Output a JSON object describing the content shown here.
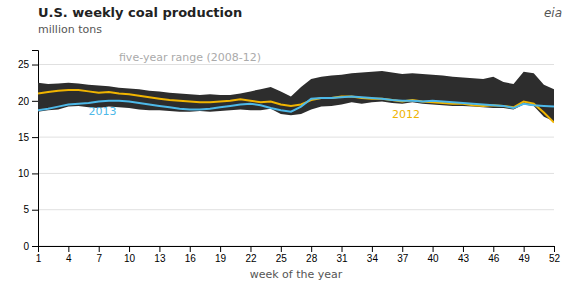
{
  "chart_data": {
    "type": "line",
    "title": "U.S. weekly coal production",
    "subtitle": "million tons",
    "xlabel": "week of the year",
    "x": [
      1,
      2,
      3,
      4,
      5,
      6,
      7,
      8,
      9,
      10,
      11,
      12,
      13,
      14,
      15,
      16,
      17,
      18,
      19,
      20,
      21,
      22,
      23,
      24,
      25,
      26,
      27,
      28,
      29,
      30,
      31,
      32,
      33,
      34,
      35,
      36,
      37,
      38,
      39,
      40,
      41,
      42,
      43,
      44,
      45,
      46,
      47,
      48,
      49,
      50,
      51,
      52
    ],
    "series": [
      {
        "type": "area",
        "color": "#2d2d2d",
        "lower": [
          18.5,
          18.7,
          18.8,
          19.2,
          19.3,
          19.1,
          19.0,
          19.2,
          19.1,
          19.0,
          18.8,
          18.7,
          18.7,
          18.6,
          18.5,
          18.5,
          18.6,
          18.5,
          18.6,
          18.7,
          18.8,
          18.7,
          18.7,
          18.9,
          18.2,
          18.0,
          18.2,
          18.8,
          19.2,
          19.3,
          19.5,
          19.8,
          19.6,
          19.8,
          19.9,
          19.7,
          19.6,
          19.8,
          19.6,
          19.5,
          19.4,
          19.3,
          19.3,
          19.2,
          19.1,
          19.0,
          19.0,
          18.8,
          19.5,
          19.3,
          17.8,
          17.2
        ],
        "upper": [
          22.5,
          22.3,
          22.4,
          22.5,
          22.4,
          22.2,
          22.1,
          22.0,
          21.8,
          21.7,
          21.6,
          21.4,
          21.3,
          21.1,
          21.0,
          20.9,
          20.8,
          20.9,
          20.8,
          20.8,
          21.0,
          21.3,
          21.6,
          21.9,
          21.3,
          20.6,
          21.9,
          23.0,
          23.3,
          23.5,
          23.6,
          23.8,
          23.9,
          24.0,
          24.1,
          23.9,
          23.7,
          23.8,
          23.7,
          23.6,
          23.5,
          23.3,
          23.2,
          23.1,
          23.0,
          23.3,
          22.6,
          22.3,
          24.0,
          23.8,
          22.2,
          21.6
        ]
      },
      {
        "type": "line",
        "color": "#f0b400",
        "values": [
          21.0,
          21.2,
          21.4,
          21.5,
          21.5,
          21.3,
          21.1,
          21.2,
          21.0,
          20.9,
          20.7,
          20.5,
          20.3,
          20.1,
          20.0,
          19.9,
          19.8,
          19.8,
          19.9,
          20.0,
          20.2,
          20.0,
          19.8,
          19.9,
          19.5,
          19.3,
          19.5,
          20.1,
          20.4,
          20.4,
          20.6,
          20.6,
          20.4,
          20.3,
          20.3,
          20.1,
          19.9,
          20.1,
          19.9,
          19.8,
          19.7,
          19.6,
          19.6,
          19.4,
          19.3,
          19.4,
          19.3,
          19.1,
          19.9,
          19.6,
          18.4,
          17.0
        ]
      },
      {
        "type": "line",
        "color": "#4db8e8",
        "values": [
          18.7,
          18.9,
          19.2,
          19.5,
          19.6,
          19.7,
          19.9,
          20.0,
          20.0,
          19.9,
          19.7,
          19.5,
          19.3,
          19.1,
          18.9,
          18.8,
          18.8,
          18.9,
          19.1,
          19.3,
          19.5,
          19.6,
          19.4,
          19.0,
          18.7,
          18.5,
          19.2,
          20.3,
          20.4,
          20.4,
          20.5,
          20.6,
          20.5,
          20.4,
          20.3,
          20.1,
          20.0,
          20.0,
          19.9,
          20.0,
          19.9,
          19.8,
          19.7,
          19.6,
          19.5,
          19.4,
          19.3,
          19.0,
          19.6,
          19.4,
          19.3,
          19.2
        ]
      }
    ],
    "annotations": [
      {
        "text": "five-year range (2008-12)",
        "x": 9,
        "y": 25.5,
        "color": "#aaaaaa"
      },
      {
        "text": "2013",
        "x": 6,
        "y": 18.0,
        "color": "#4db8e8"
      },
      {
        "text": "2012",
        "x": 36,
        "y": 17.6,
        "color": "#f0b400"
      },
      {
        "text": "eia"
      }
    ],
    "xlim": [
      1,
      52
    ],
    "ylim": [
      0,
      27
    ],
    "xticks": [
      1,
      4,
      7,
      10,
      13,
      16,
      19,
      22,
      25,
      28,
      31,
      34,
      37,
      40,
      43,
      46,
      49,
      52
    ],
    "yticks": [
      0,
      5,
      10,
      15,
      20,
      25
    ],
    "grid": true
  }
}
